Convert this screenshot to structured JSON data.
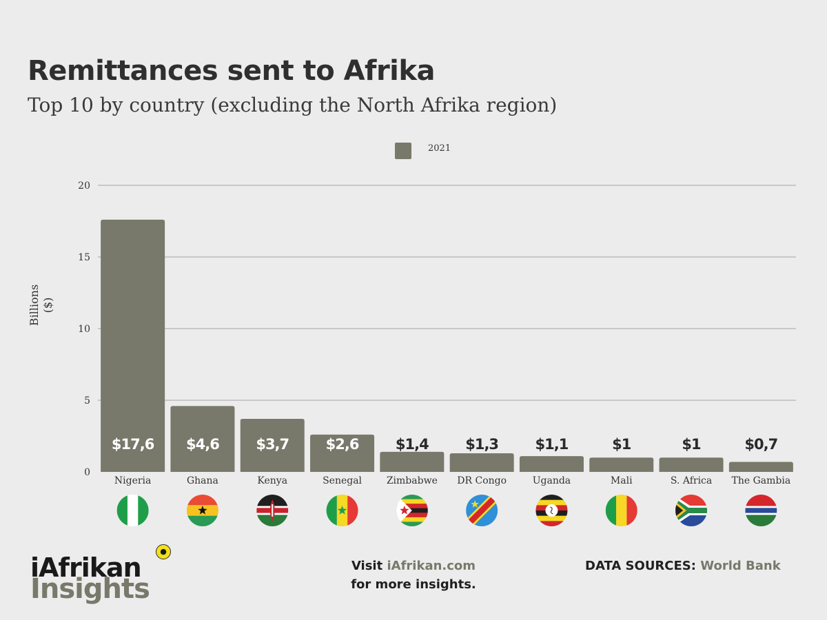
{
  "title": "Remittances sent to Afrika",
  "subtitle": "Top 10 by country (excluding the North Afrika region)",
  "chart_data": {
    "type": "bar",
    "title": "Remittances sent to Afrika",
    "subtitle": "Top 10 by country (excluding the North Afrika region)",
    "xlabel": "",
    "ylabel_lines": [
      "Billions",
      "($)"
    ],
    "ylim": [
      0,
      20
    ],
    "yticks": [
      0,
      5,
      10,
      15,
      20
    ],
    "grid": true,
    "legend": {
      "position": "top-center",
      "entries": [
        "2021"
      ]
    },
    "categories": [
      "Nigeria",
      "Ghana",
      "Kenya",
      "Senegal",
      "Zimbabwe",
      "DR Congo",
      "Uganda",
      "Mali",
      "S. Africa",
      "The Gambia"
    ],
    "series": [
      {
        "name": "2021",
        "color": "#78796a",
        "values": [
          17.6,
          4.6,
          3.7,
          2.6,
          1.4,
          1.3,
          1.1,
          1.0,
          1.0,
          0.7
        ]
      }
    ],
    "data_labels": [
      "$17,6",
      "$4,6",
      "$3,7",
      "$2,6",
      "$1,4",
      "$1,3",
      "$1,1",
      "$1",
      "$1",
      "$0,7"
    ],
    "flags": [
      "nigeria-flag-icon",
      "ghana-flag-icon",
      "kenya-flag-icon",
      "senegal-flag-icon",
      "zimbabwe-flag-icon",
      "dr-congo-flag-icon",
      "uganda-flag-icon",
      "mali-flag-icon",
      "south-africa-flag-icon",
      "gambia-flag-icon"
    ]
  },
  "footer": {
    "logo_top": "iAfrikan",
    "logo_bottom": "Insights",
    "visit_prefix": "Visit",
    "visit_site": "iAfrikan.com",
    "visit_suffix": "for more insights.",
    "sources_label": "DATA SOURCES:",
    "sources_value": "World Bank"
  },
  "colors": {
    "background": "#ececec",
    "bar": "#78796a",
    "accent": "#78796a",
    "gridline": "#c8c8c8"
  }
}
